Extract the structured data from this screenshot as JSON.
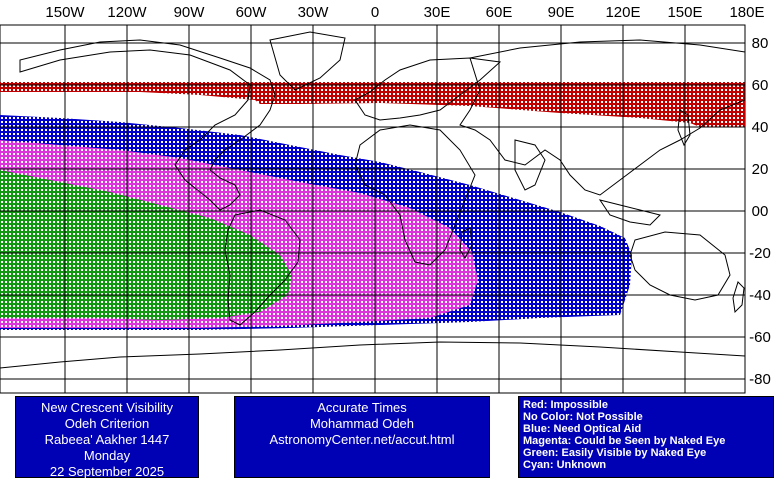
{
  "map": {
    "top_labels": [
      "150W",
      "120W",
      "90W",
      "60W",
      "30W",
      "0",
      "30E",
      "60E",
      "90E",
      "120E",
      "150E",
      "180E"
    ],
    "lat_labels": [
      "80",
      "60",
      "40",
      "20",
      "00",
      "-20",
      "-40",
      "-60",
      "-80"
    ],
    "colors": {
      "red": "#c00000",
      "blue": "#0000cc",
      "magenta": "#dd33dd",
      "green": "#119911",
      "grid": "#000000",
      "coast": "#000000"
    }
  },
  "info_left": {
    "line1": "New Crescent Visibility",
    "line2": "Odeh Criterion",
    "line3": "Rabeea' Aakher 1447",
    "line4": "Monday",
    "line5": "22 September 2025"
  },
  "info_center": {
    "line1": "Accurate Times",
    "line2": "Mohammad Odeh",
    "line3": "AstronomyCenter.net/accut.html"
  },
  "legend": {
    "red": "Red: Impossible",
    "none": "No Color: Not Possible",
    "blue": "Blue: Need Optical Aid",
    "magenta": "Magenta: Could be Seen by Naked Eye",
    "green": "Green: Easily Visible by Naked Eye",
    "cyan": "Cyan: Unknown"
  }
}
